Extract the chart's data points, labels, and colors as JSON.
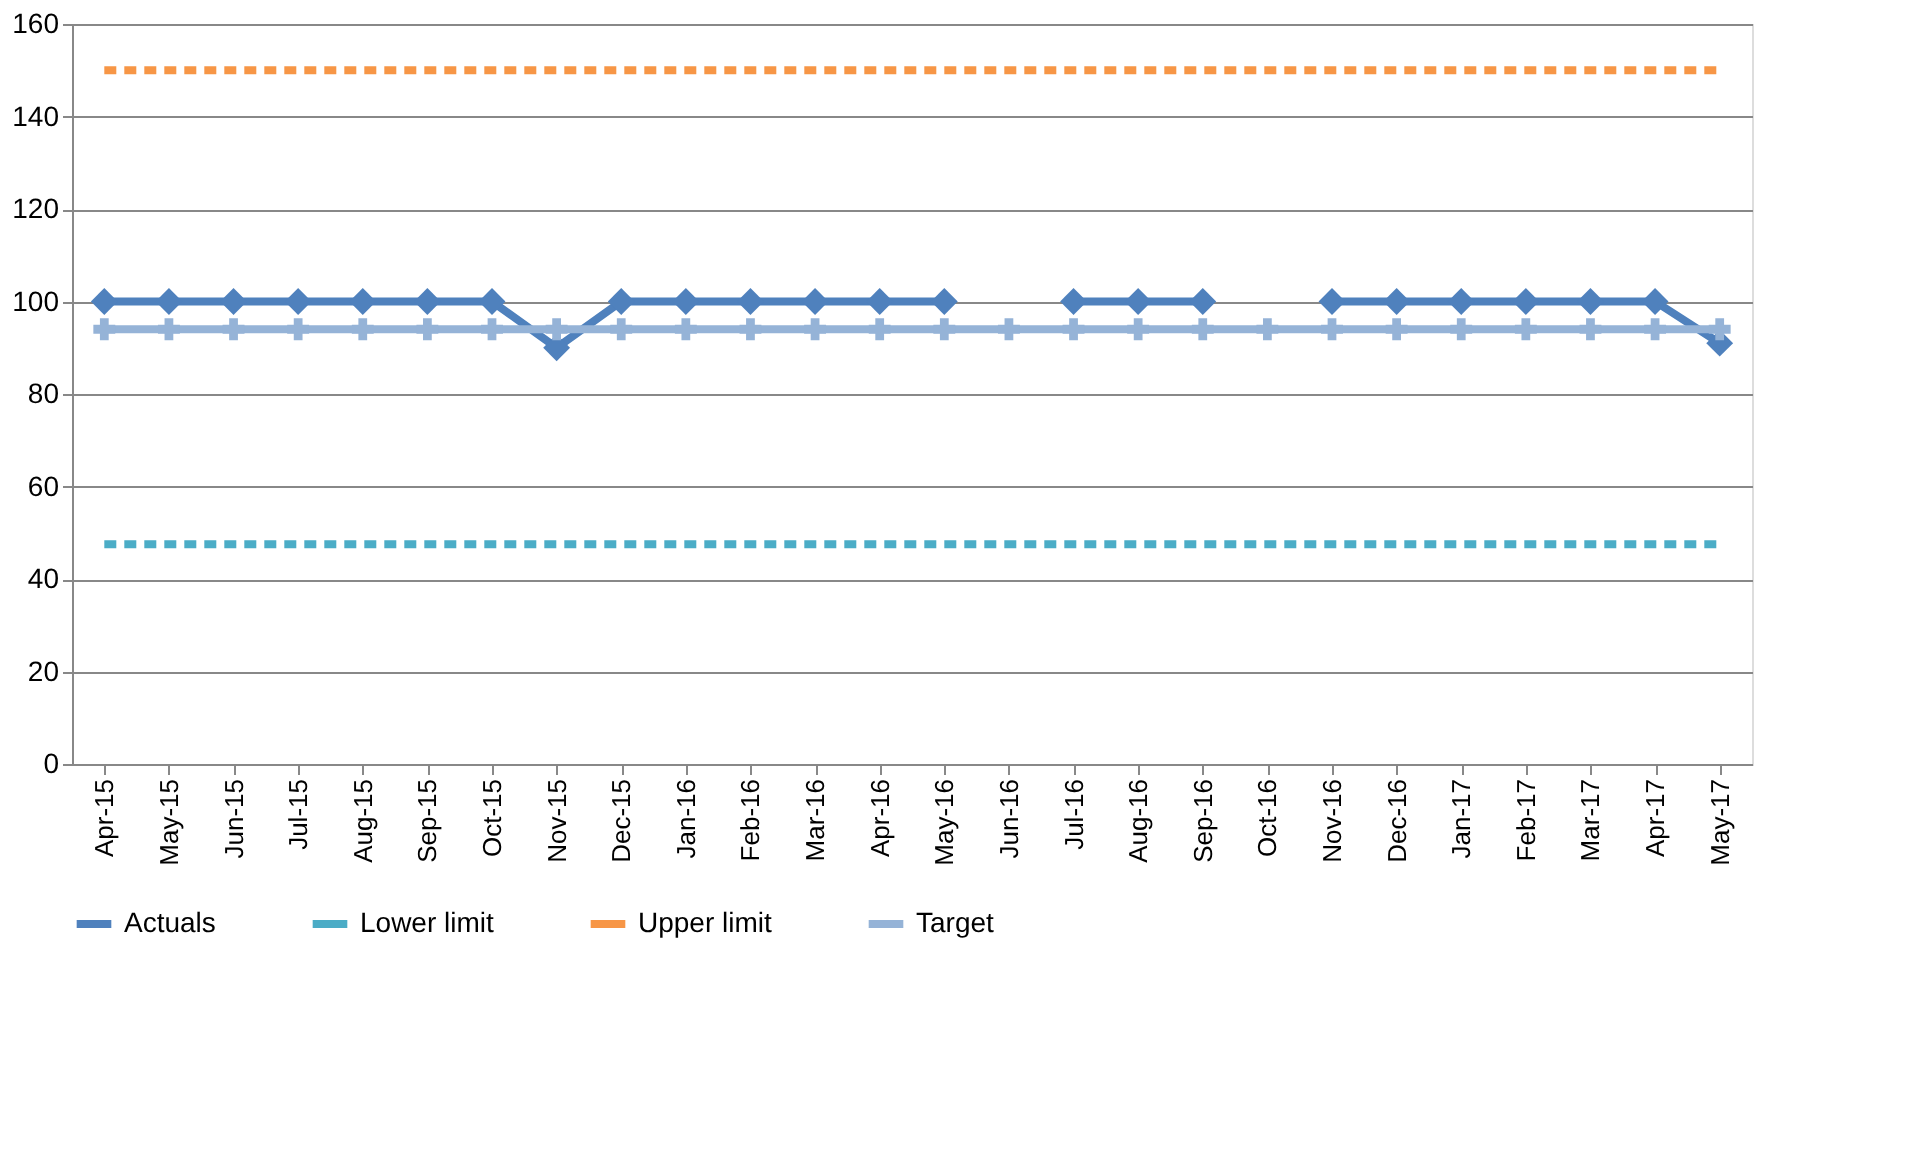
{
  "chart_data": {
    "type": "line",
    "categories": [
      "Apr-15",
      "May-15",
      "Jun-15",
      "Jul-15",
      "Aug-15",
      "Sep-15",
      "Oct-15",
      "Nov-15",
      "Dec-15",
      "Jan-16",
      "Feb-16",
      "Mar-16",
      "Apr-16",
      "May-16",
      "Jun-16",
      "Jul-16",
      "Aug-16",
      "Sep-16",
      "Oct-16",
      "Nov-16",
      "Dec-16",
      "Jan-17",
      "Feb-17",
      "Mar-17",
      "Apr-17",
      "May-17"
    ],
    "series": [
      {
        "name": "Actuals",
        "color": "#4f81bd",
        "marker": "diamond",
        "line_style": "solid",
        "values": [
          100,
          100,
          100,
          100,
          100,
          100,
          100,
          90,
          100,
          100,
          100,
          100,
          100,
          100,
          null,
          100,
          100,
          100,
          null,
          100,
          100,
          100,
          100,
          100,
          100,
          91
        ]
      },
      {
        "name": "Lower limit",
        "color": "#4bacc6",
        "marker": "none",
        "line_style": "dashed",
        "values": [
          47.5,
          47.5,
          47.5,
          47.5,
          47.5,
          47.5,
          47.5,
          47.5,
          47.5,
          47.5,
          47.5,
          47.5,
          47.5,
          47.5,
          47.5,
          47.5,
          47.5,
          47.5,
          47.5,
          47.5,
          47.5,
          47.5,
          47.5,
          47.5,
          47.5,
          47.5
        ]
      },
      {
        "name": "Upper limit",
        "color": "#f79646",
        "marker": "none",
        "line_style": "dashed",
        "values": [
          150,
          150,
          150,
          150,
          150,
          150,
          150,
          150,
          150,
          150,
          150,
          150,
          150,
          150,
          150,
          150,
          150,
          150,
          150,
          150,
          150,
          150,
          150,
          150,
          150,
          150
        ]
      },
      {
        "name": "Target",
        "color": "#95b3d7",
        "marker": "cross",
        "line_style": "solid",
        "values": [
          94,
          94,
          94,
          94,
          94,
          94,
          94,
          94,
          94,
          94,
          94,
          94,
          94,
          94,
          94,
          94,
          94,
          94,
          94,
          94,
          94,
          94,
          94,
          94,
          94,
          94
        ]
      }
    ],
    "ylim": [
      0,
      160
    ],
    "yticks": [
      0,
      20,
      40,
      60,
      80,
      100,
      120,
      140,
      160
    ],
    "grid": "y",
    "legend": "bottom"
  }
}
